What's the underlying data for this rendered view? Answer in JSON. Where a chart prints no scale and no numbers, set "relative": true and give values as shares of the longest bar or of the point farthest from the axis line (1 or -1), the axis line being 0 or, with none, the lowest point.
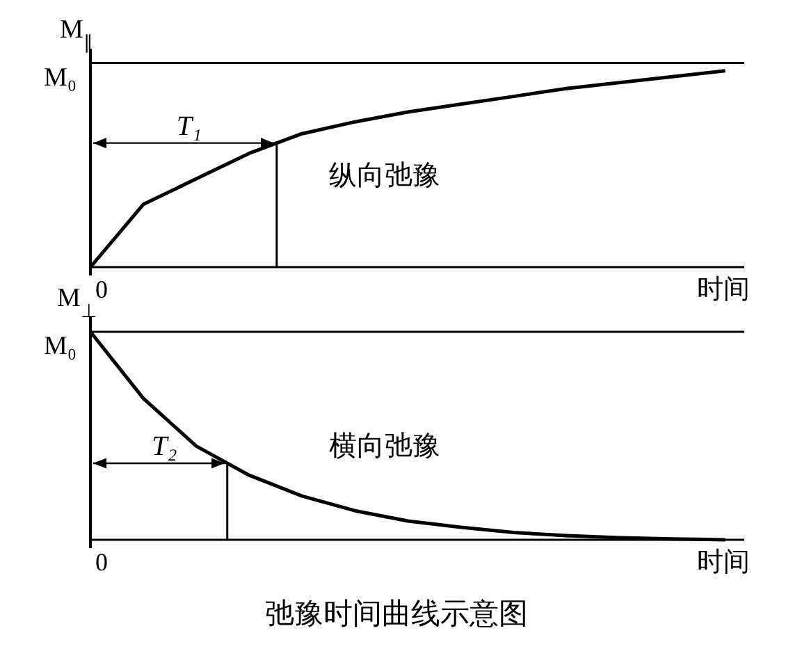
{
  "chart_data": [
    {
      "type": "line",
      "relative": true,
      "ylabel": "M$_{∥}$",
      "xlabel": "时间",
      "categories": [
        null,
        null,
        null,
        null,
        null,
        null,
        null,
        null,
        null,
        null,
        null,
        null,
        null
      ],
      "series": [
        {
          "color": "#000000",
          "values": [
            0,
            0.32,
            0.45,
            0.58,
            0.68,
            0.74,
            0.79,
            0.83,
            0.87,
            0.91,
            0.94,
            0.97,
            1
          ]
        }
      ],
      "ref_lines": [
        {
          "axis": "y",
          "value": 1.04,
          "label": "M₀"
        }
      ],
      "line_style": "solid",
      "annotations": [
        "0",
        "T₁",
        "纵向弛豫"
      ]
    },
    {
      "type": "line",
      "relative": true,
      "ylabel": "M$_{⊥}$",
      "xlabel": "时间",
      "categories": [
        null,
        null,
        null,
        null,
        null,
        null,
        null,
        null,
        null,
        null,
        null,
        null,
        null
      ],
      "series": [
        {
          "color": "#000000",
          "values": [
            1,
            0.68,
            0.45,
            0.31,
            0.21,
            0.14,
            0.09,
            0.06,
            0.035,
            0.02,
            0.01,
            0.004,
            0
          ]
        }
      ],
      "ref_lines": [
        {
          "axis": "y",
          "value": 1,
          "label": "M₀"
        }
      ],
      "line_style": "solid",
      "annotations": [
        "0",
        "T₂",
        "横向弛豫",
        "弛豫时间曲线示意图"
      ]
    }
  ]
}
